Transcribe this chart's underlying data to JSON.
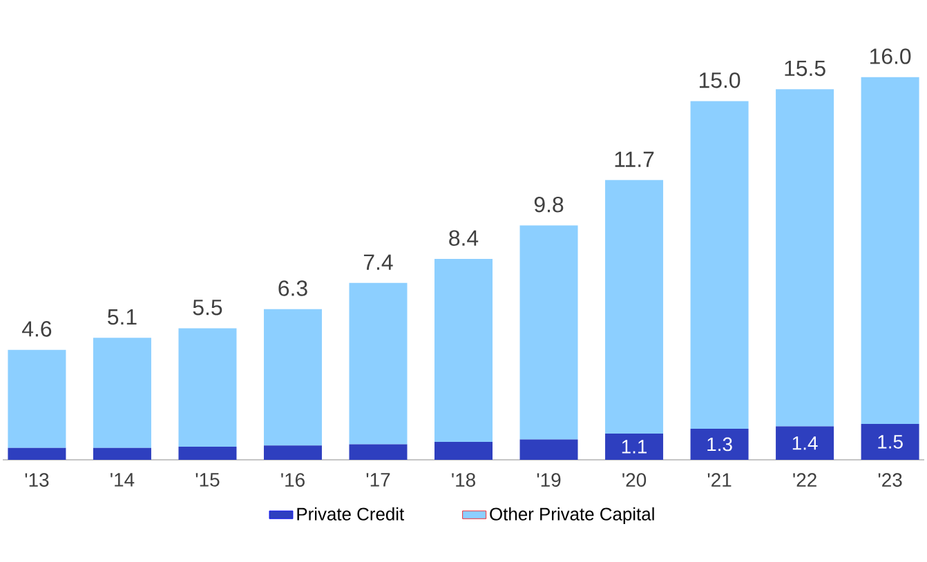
{
  "chart_data": {
    "type": "bar",
    "stacked": true,
    "categories": [
      "'13",
      "'14",
      "'15",
      "'16",
      "'17",
      "'18",
      "'19",
      "'20",
      "'21",
      "'22",
      "'23"
    ],
    "series": [
      {
        "name": "Private Credit",
        "color": "#2e3fbf",
        "values": [
          0.5,
          0.5,
          0.55,
          0.6,
          0.65,
          0.75,
          0.85,
          1.1,
          1.3,
          1.4,
          1.5
        ],
        "value_labels": [
          null,
          null,
          null,
          null,
          null,
          null,
          null,
          "1.1",
          "1.3",
          "1.4",
          "1.5"
        ]
      },
      {
        "name": "Other Private Capital",
        "color": "#8ccfff",
        "values": [
          4.1,
          4.6,
          4.95,
          5.7,
          6.75,
          7.65,
          8.95,
          10.6,
          13.7,
          14.1,
          14.5
        ]
      }
    ],
    "totals": [
      "4.6",
      "5.1",
      "5.5",
      "6.3",
      "7.4",
      "8.4",
      "9.8",
      "11.7",
      "15.0",
      "15.5",
      "16.0"
    ],
    "legend": "bottom"
  }
}
